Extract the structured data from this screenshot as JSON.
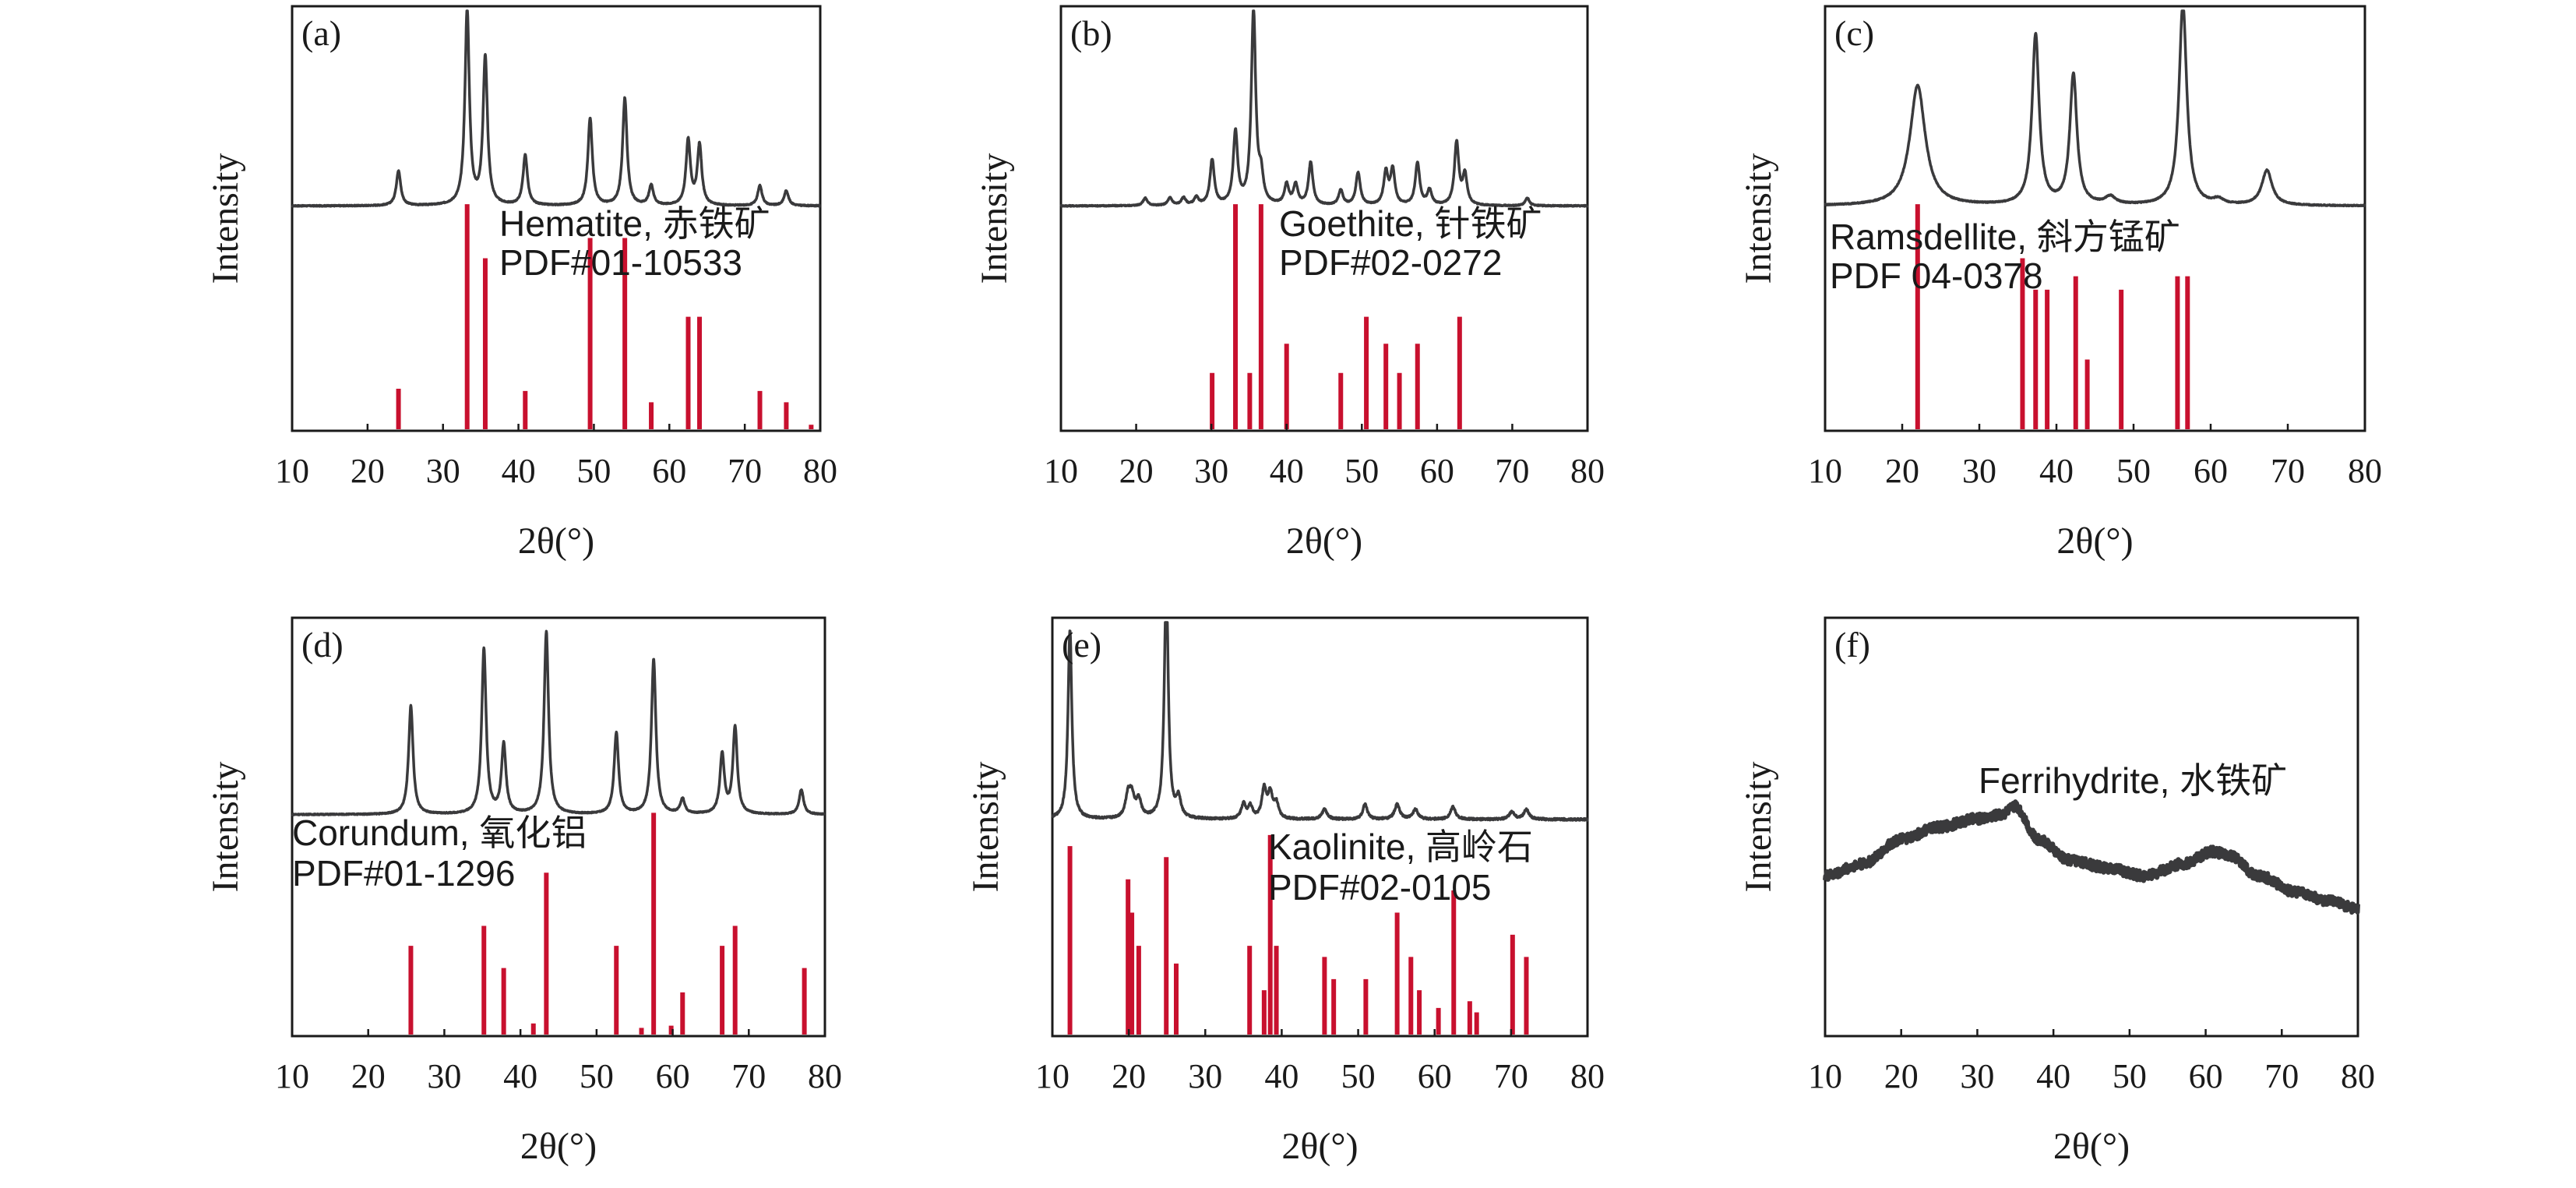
{
  "figure": {
    "colors": {
      "pattern": "#3a3a3c",
      "reference": "#c8102e",
      "frame": "#1a1a1a",
      "background": "#ffffff"
    }
  },
  "chart_data": [
    {
      "type": "line",
      "panel_label": "(a)",
      "xlabel": "2θ(°)",
      "ylabel": "Intensity",
      "xlim": [
        10,
        80
      ],
      "xticks": [
        "10",
        "20",
        "30",
        "40",
        "50",
        "60",
        "70",
        "80"
      ],
      "phase_label": "Hematite, 赤铁矿",
      "pdf_label": "PDF#01-10533",
      "pattern": {
        "baseline": 0.22,
        "noise": 0.002,
        "peaks": [
          [
            24.1,
            0.14,
            0.35
          ],
          [
            33.2,
            0.78,
            0.35
          ],
          [
            35.6,
            0.59,
            0.35
          ],
          [
            40.9,
            0.2,
            0.35
          ],
          [
            49.5,
            0.35,
            0.35
          ],
          [
            54.1,
            0.43,
            0.35
          ],
          [
            57.6,
            0.08,
            0.35
          ],
          [
            62.5,
            0.26,
            0.35
          ],
          [
            64.0,
            0.24,
            0.35
          ],
          [
            72.0,
            0.08,
            0.35
          ],
          [
            75.5,
            0.06,
            0.35
          ]
        ]
      },
      "reference": {
        "lines": [
          [
            24.1,
            0.18
          ],
          [
            33.2,
            1.0
          ],
          [
            35.6,
            0.76
          ],
          [
            40.9,
            0.17
          ],
          [
            49.5,
            0.85
          ],
          [
            54.1,
            0.85
          ],
          [
            57.6,
            0.12
          ],
          [
            62.5,
            0.5
          ],
          [
            64.0,
            0.5
          ],
          [
            72.0,
            0.17
          ],
          [
            75.5,
            0.12
          ],
          [
            78.8,
            0.02
          ]
        ]
      }
    },
    {
      "type": "line",
      "panel_label": "(b)",
      "xlabel": "2θ(°)",
      "ylabel": "Intensity",
      "xlim": [
        10,
        80
      ],
      "xticks": [
        "10",
        "20",
        "30",
        "40",
        "50",
        "60",
        "70",
        "80"
      ],
      "phase_label": "Goethite, 针铁矿",
      "pdf_label": "PDF#02-0272",
      "pattern": {
        "baseline": 0.22,
        "noise": 0.002,
        "peaks": [
          [
            21.2,
            0.03,
            0.35
          ],
          [
            24.5,
            0.03,
            0.35
          ],
          [
            26.3,
            0.03,
            0.35
          ],
          [
            28.0,
            0.03,
            0.35
          ],
          [
            30.1,
            0.18,
            0.35
          ],
          [
            33.2,
            0.29,
            0.35
          ],
          [
            35.6,
            0.78,
            0.35
          ],
          [
            36.6,
            0.1,
            0.35
          ],
          [
            40.0,
            0.08,
            0.35
          ],
          [
            41.2,
            0.08,
            0.35
          ],
          [
            43.2,
            0.17,
            0.35
          ],
          [
            47.2,
            0.06,
            0.35
          ],
          [
            49.5,
            0.13,
            0.35
          ],
          [
            53.2,
            0.13,
            0.35
          ],
          [
            54.1,
            0.14,
            0.35
          ],
          [
            57.4,
            0.17,
            0.35
          ],
          [
            59.0,
            0.06,
            0.35
          ],
          [
            62.6,
            0.25,
            0.35
          ],
          [
            63.7,
            0.12,
            0.35
          ],
          [
            72.0,
            0.03,
            0.35
          ]
        ]
      },
      "reference": {
        "lines": [
          [
            30.1,
            0.25
          ],
          [
            33.2,
            1.0
          ],
          [
            35.1,
            0.25
          ],
          [
            36.6,
            1.0
          ],
          [
            40.0,
            0.38
          ],
          [
            47.2,
            0.25
          ],
          [
            50.6,
            0.5
          ],
          [
            53.2,
            0.38
          ],
          [
            55.0,
            0.25
          ],
          [
            57.4,
            0.38
          ],
          [
            63.0,
            0.5
          ]
        ]
      }
    },
    {
      "type": "line",
      "panel_label": "(c)",
      "xlabel": "2θ(°)",
      "ylabel": "Intensity",
      "xlim": [
        10,
        80
      ],
      "xticks": [
        "10",
        "20",
        "30",
        "40",
        "50",
        "60",
        "70",
        "80"
      ],
      "phase_label": "Ramsdellite, 斜方锰矿",
      "pdf_label": "PDF 04-0378",
      "pattern": {
        "baseline": 0.22,
        "noise": 0.002,
        "peaks": [
          [
            22.0,
            0.48,
            1.2
          ],
          [
            37.3,
            0.68,
            0.55
          ],
          [
            42.2,
            0.52,
            0.55
          ],
          [
            56.4,
            0.81,
            0.6
          ],
          [
            67.3,
            0.14,
            0.8
          ],
          [
            47.0,
            0.03,
            0.8
          ],
          [
            61.0,
            0.02,
            0.8
          ]
        ]
      },
      "reference": {
        "lines": [
          [
            22.0,
            1.0
          ],
          [
            35.6,
            0.76
          ],
          [
            37.3,
            0.62
          ],
          [
            38.8,
            0.62
          ],
          [
            42.5,
            0.68
          ],
          [
            44.0,
            0.31
          ],
          [
            48.4,
            0.62
          ],
          [
            55.7,
            0.68
          ],
          [
            57.0,
            0.68
          ]
        ]
      }
    },
    {
      "type": "line",
      "panel_label": "(d)",
      "xlabel": "2θ(°)",
      "ylabel": "Intensity",
      "xlim": [
        10,
        80
      ],
      "xticks": [
        "10",
        "20",
        "30",
        "40",
        "50",
        "60",
        "70",
        "80"
      ],
      "phase_label": "Corundum, 氧化铝",
      "pdf_label": "PDF#01-1296",
      "pattern": {
        "baseline": 0.22,
        "noise": 0.002,
        "peaks": [
          [
            25.6,
            0.44,
            0.35
          ],
          [
            35.2,
            0.67,
            0.35
          ],
          [
            37.8,
            0.28,
            0.35
          ],
          [
            43.4,
            0.74,
            0.35
          ],
          [
            52.6,
            0.33,
            0.35
          ],
          [
            57.5,
            0.63,
            0.35
          ],
          [
            61.3,
            0.06,
            0.35
          ],
          [
            66.5,
            0.24,
            0.35
          ],
          [
            68.2,
            0.35,
            0.35
          ],
          [
            76.9,
            0.1,
            0.35
          ]
        ]
      },
      "reference": {
        "lines": [
          [
            25.6,
            0.4
          ],
          [
            35.2,
            0.49
          ],
          [
            37.8,
            0.3
          ],
          [
            41.7,
            0.05
          ],
          [
            43.4,
            0.73
          ],
          [
            52.6,
            0.4
          ],
          [
            55.9,
            0.03
          ],
          [
            57.5,
            1.0
          ],
          [
            59.8,
            0.04
          ],
          [
            61.3,
            0.19
          ],
          [
            66.5,
            0.4
          ],
          [
            68.2,
            0.49
          ],
          [
            77.3,
            0.3
          ]
        ]
      }
    },
    {
      "type": "line",
      "panel_label": "(e)",
      "xlabel": "2θ(°)",
      "ylabel": "Intensity",
      "xlim": [
        10,
        80
      ],
      "xticks": [
        "10",
        "20",
        "30",
        "40",
        "50",
        "60",
        "70",
        "80"
      ],
      "phase_label": "Kaolinite, 高岭石",
      "pdf_label": "PDF#02-0105",
      "pattern": {
        "baseline": 0.2,
        "noise": 0.004,
        "peaks": [
          [
            12.3,
            0.77,
            0.3
          ],
          [
            19.9,
            0.09,
            0.4
          ],
          [
            20.4,
            0.08,
            0.4
          ],
          [
            21.3,
            0.07,
            0.4
          ],
          [
            24.9,
            0.99,
            0.3
          ],
          [
            26.5,
            0.08,
            0.35
          ],
          [
            35.0,
            0.06,
            0.35
          ],
          [
            35.9,
            0.05,
            0.35
          ],
          [
            37.7,
            0.12,
            0.35
          ],
          [
            38.5,
            0.1,
            0.35
          ],
          [
            39.3,
            0.06,
            0.35
          ],
          [
            45.6,
            0.04,
            0.4
          ],
          [
            50.9,
            0.06,
            0.35
          ],
          [
            55.1,
            0.06,
            0.4
          ],
          [
            57.5,
            0.04,
            0.4
          ],
          [
            62.4,
            0.05,
            0.4
          ],
          [
            70.1,
            0.03,
            0.4
          ],
          [
            72.0,
            0.04,
            0.4
          ]
        ]
      },
      "reference": {
        "lines": [
          [
            12.3,
            0.85
          ],
          [
            19.9,
            0.7
          ],
          [
            20.4,
            0.55
          ],
          [
            21.3,
            0.4
          ],
          [
            24.9,
            0.8
          ],
          [
            26.2,
            0.32
          ],
          [
            35.8,
            0.4
          ],
          [
            37.7,
            0.2
          ],
          [
            38.5,
            0.9
          ],
          [
            39.3,
            0.4
          ],
          [
            45.6,
            0.35
          ],
          [
            46.8,
            0.25
          ],
          [
            51.0,
            0.25
          ],
          [
            55.1,
            0.55
          ],
          [
            56.9,
            0.35
          ],
          [
            58.0,
            0.2
          ],
          [
            60.5,
            0.12
          ],
          [
            62.5,
            0.65
          ],
          [
            64.6,
            0.15
          ],
          [
            65.5,
            0.1
          ],
          [
            70.2,
            0.45
          ],
          [
            72.0,
            0.35
          ]
        ]
      }
    },
    {
      "type": "line",
      "panel_label": "(f)",
      "xlabel": "2θ(°)",
      "ylabel": "Intensity",
      "xlim": [
        10,
        80
      ],
      "xticks": [
        "10",
        "20",
        "30",
        "40",
        "50",
        "60",
        "70",
        "80"
      ],
      "phase_label": "Ferrihydrite, 水铁矿",
      "pdf_label": "",
      "pattern": {
        "baseline": 0.0,
        "noise": 0.012,
        "profile": [
          [
            10,
            0.38
          ],
          [
            15,
            0.41
          ],
          [
            20,
            0.47
          ],
          [
            25,
            0.5
          ],
          [
            30,
            0.52
          ],
          [
            33,
            0.53
          ],
          [
            35,
            0.55
          ],
          [
            38,
            0.47
          ],
          [
            42,
            0.42
          ],
          [
            47,
            0.4
          ],
          [
            52,
            0.38
          ],
          [
            57,
            0.41
          ],
          [
            61,
            0.44
          ],
          [
            63,
            0.43
          ],
          [
            67,
            0.38
          ],
          [
            72,
            0.34
          ],
          [
            76,
            0.32
          ],
          [
            80,
            0.3
          ]
        ]
      },
      "reference": null
    }
  ]
}
